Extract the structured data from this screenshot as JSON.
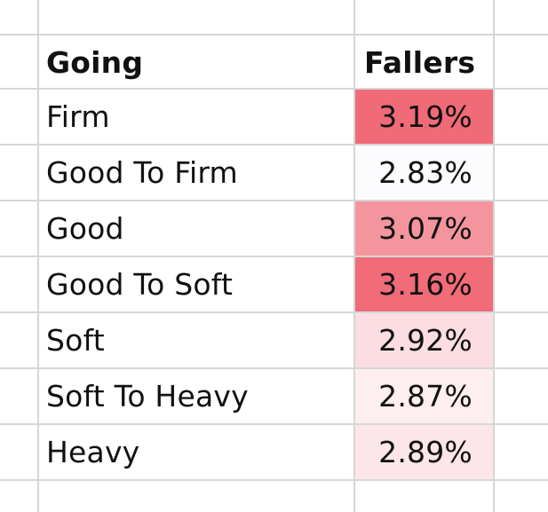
{
  "spreadsheet": {
    "headers": {
      "going": "Going",
      "fallers": "Fallers"
    },
    "rows": [
      {
        "going": "Firm",
        "fallers": "3.19%",
        "fill": "#f16a77"
      },
      {
        "going": "Good To Firm",
        "fallers": "2.83%",
        "fill": "#fcfcff"
      },
      {
        "going": "Good",
        "fallers": "3.07%",
        "fill": "#f4959e"
      },
      {
        "going": "Good To Soft",
        "fallers": "3.16%",
        "fill": "#f16b78"
      },
      {
        "going": "Soft",
        "fallers": "2.92%",
        "fill": "#fcdde1"
      },
      {
        "going": "Soft To Heavy",
        "fallers": "2.87%",
        "fill": "#fdeef0"
      },
      {
        "going": "Heavy",
        "fallers": "2.89%",
        "fill": "#fde6e9"
      }
    ]
  }
}
